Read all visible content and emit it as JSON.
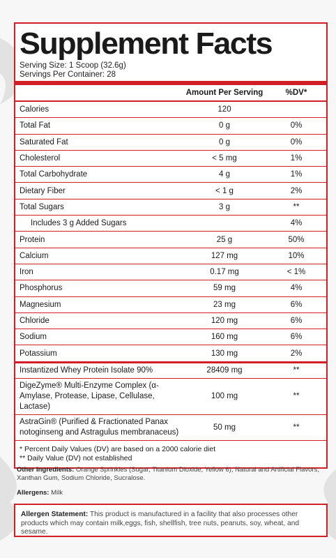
{
  "title": "Supplement Facts",
  "serving_size": "Serving Size: 1 Scoop (32.6g)",
  "servings_per_container": "Servings Per Container: 28",
  "columns": {
    "amount": "Amount Per Serving",
    "dv": "%DV*"
  },
  "nutrients": [
    {
      "name": "Calories",
      "amount": "120",
      "dv": ""
    },
    {
      "name": "Total Fat",
      "amount": "0 g",
      "dv": "0%"
    },
    {
      "name": "Saturated Fat",
      "amount": "0 g",
      "dv": "0%"
    },
    {
      "name": "Cholesterol",
      "amount": "< 5 mg",
      "dv": "1%"
    },
    {
      "name": "Total Carbohydrate",
      "amount": "4 g",
      "dv": "1%"
    },
    {
      "name": "Dietary Fiber",
      "amount": "< 1 g",
      "dv": "2%"
    },
    {
      "name": "Total Sugars",
      "amount": "3 g",
      "dv": "**"
    },
    {
      "name": "Includes 3 g Added Sugars",
      "amount": "",
      "dv": "4%"
    },
    {
      "name": "Protein",
      "amount": "25 g",
      "dv": "50%"
    },
    {
      "name": "Calcium",
      "amount": "127 mg",
      "dv": "10%"
    },
    {
      "name": "Iron",
      "amount": "0.17 mg",
      "dv": "< 1%"
    },
    {
      "name": "Phosphorus",
      "amount": "59 mg",
      "dv": "4%"
    },
    {
      "name": "Magnesium",
      "amount": "23 mg",
      "dv": "6%"
    },
    {
      "name": "Chloride",
      "amount": "120 mg",
      "dv": "6%"
    },
    {
      "name": "Sodium",
      "amount": "160 mg",
      "dv": "6%"
    },
    {
      "name": "Potassium",
      "amount": "130 mg",
      "dv": "2%"
    }
  ],
  "proprietary": [
    {
      "name": "Instantized Whey Protein Isolate 90%",
      "amount": "28409 mg",
      "dv": "**"
    },
    {
      "name": "DigeZyme® Multi-Enzyme Complex (α-Amylase, Protease, Lipase, Cellulase, Lactase)",
      "amount": "100 mg",
      "dv": "**"
    },
    {
      "name": "AstraGin® (Purified & Fractionated Panax notoginseng and Astragulus membranaceus)",
      "amount": "50 mg",
      "dv": "**"
    }
  ],
  "footnotes": {
    "line1": "* Percent Daily Values (DV) are based on a 2000 calorie diet",
    "line2": "** Daily Value (DV) not established"
  },
  "other_ingredients": {
    "label": "Other Ingredients:",
    "text": "Orange Sprinkles (Sugar, Titanium Dioxide, Yellow 6), Natural and Artificial Flavors, Xanthan Gum, Sodium Chloride, Sucralose."
  },
  "allergens": {
    "label": "Allergens:",
    "text": "Milk"
  },
  "allergen_statement": {
    "label": "Allergen Statement:",
    "text": "This product is manufactured in a facility that also processes other products which may contain milk,eggs, fish, shellfish, tree nuts, peanuts, soy, wheat, and sesame."
  },
  "colors": {
    "border": "#d11f25",
    "background": "#f7f7f7"
  }
}
